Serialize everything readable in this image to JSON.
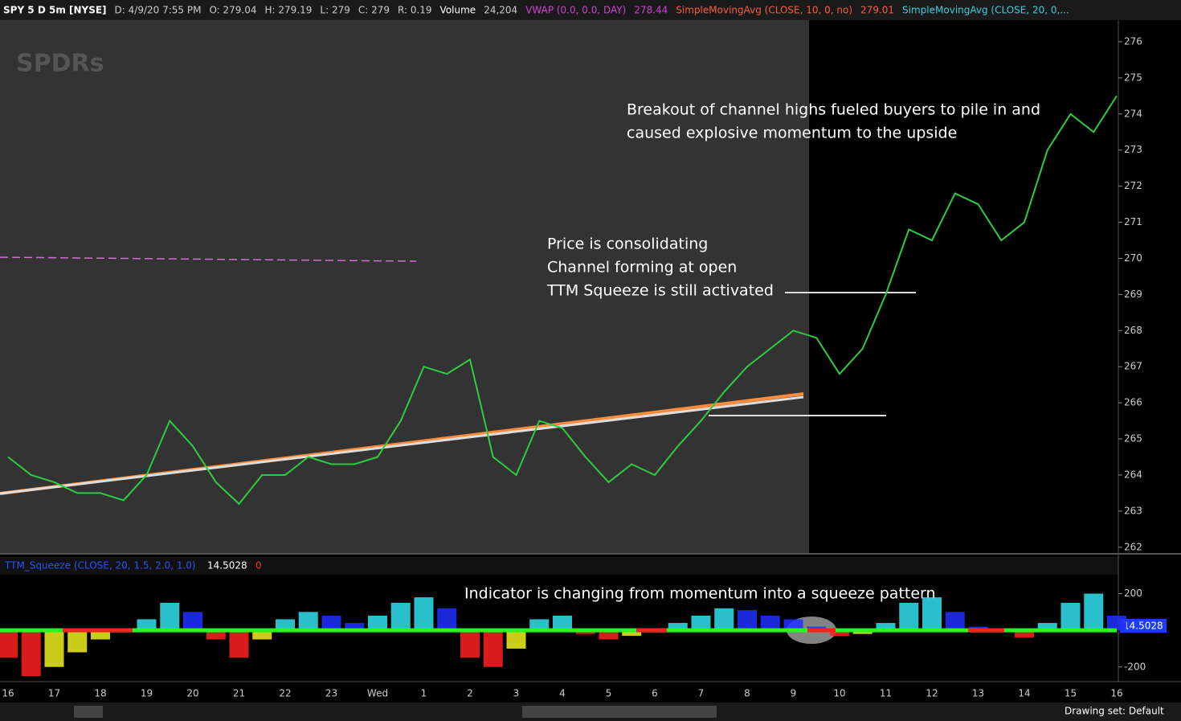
{
  "header": {
    "items": [
      "SPY 5 D 5m [NYSE]",
      "D: 4/9/20 7:55 PM",
      "O: 279.04",
      "H: 279.19",
      "L: 279",
      "C: 279",
      "R: 0.19",
      "Volume",
      "24,204",
      "VWAP (0.0, 0.0, DAY)",
      "278.44",
      "SimpleMovingAvg (CLOSE, 10, 0, no)",
      "279.01",
      "SimpleMovingAvg (CLOSE, 20, 0,..."
    ]
  },
  "watermark": "SPDRs",
  "price_pane": {
    "ylim": [
      261.84,
      276.6
    ],
    "yticks": [
      262,
      263,
      264,
      265,
      266,
      267,
      268,
      269,
      270,
      271,
      272,
      273,
      274,
      275,
      276
    ],
    "categories": [
      "16",
      null,
      "17",
      null,
      "18",
      null,
      "19",
      null,
      "20",
      null,
      "21",
      null,
      "22",
      null,
      "23",
      null,
      "Wed",
      null,
      "1",
      null,
      "2",
      null,
      "3",
      null,
      "4",
      null,
      "5",
      null,
      "6",
      null,
      "7",
      null,
      "8",
      null,
      "9",
      null,
      "10",
      null,
      "11",
      null,
      "12",
      null,
      "13",
      null,
      "14",
      null,
      "15",
      null,
      "16"
    ],
    "close": [
      264.5,
      264.0,
      263.8,
      263.5,
      263.5,
      263.3,
      264.0,
      265.5,
      264.8,
      263.8,
      263.2,
      264.0,
      264.0,
      264.5,
      264.3,
      264.3,
      264.5,
      265.5,
      267.0,
      266.8,
      267.2,
      264.5,
      264.0,
      265.5,
      265.3,
      264.5,
      263.8,
      264.3,
      264.0,
      264.8,
      265.5,
      266.3,
      267.0,
      267.5,
      268.0,
      267.8,
      266.8,
      267.5,
      269.0,
      270.8,
      270.5,
      271.8,
      271.5,
      270.5,
      271.0,
      273.0,
      274.0,
      273.5,
      274.5
    ]
  },
  "squeeze_pane": {
    "title": "TTM_Squeeze (CLOSE, 20, 1.5, 2.0, 1.0)",
    "value": "14.5028",
    "zero": "0",
    "current_label": "14.5028",
    "ylim": [
      -280,
      290
    ],
    "yticks": [
      200,
      -200
    ],
    "values": [
      -150,
      -250,
      -200,
      -120,
      -50,
      0,
      60,
      150,
      100,
      -50,
      -150,
      -50,
      60,
      100,
      80,
      40,
      80,
      150,
      180,
      120,
      -150,
      -200,
      -100,
      60,
      80,
      -20,
      -50,
      -30,
      -10,
      40,
      80,
      120,
      110,
      80,
      60,
      20,
      -30,
      -20,
      40,
      150,
      180,
      100,
      20,
      -10,
      -40,
      40,
      150,
      200,
      80
    ]
  },
  "annotations": {
    "breakout": [
      "Breakout of channel highs fueled buyers to pile in and",
      "caused explosive momentum to the upside"
    ],
    "consolidating": [
      "Price is consolidating",
      "Channel forming at open",
      "TTM Squeeze is still activated"
    ],
    "indicator": "Indicator is changing from momentum into a squeeze pattern"
  },
  "footer": {
    "drawing_set": "Drawing set: Default"
  }
}
